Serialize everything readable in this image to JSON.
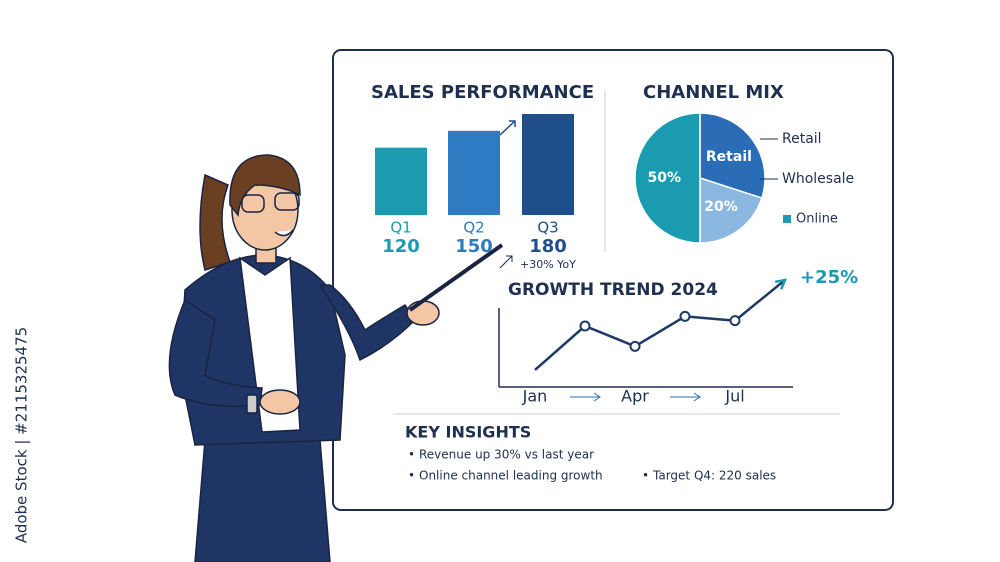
{
  "chart_data": [
    {
      "type": "bar",
      "title": "SALES PERFORMANCE",
      "categories": [
        "Q1",
        "Q2",
        "Q3"
      ],
      "values": [
        120,
        150,
        180
      ],
      "colors": [
        "#1a9bb0",
        "#2e7bc4",
        "#1f4e8c"
      ],
      "annotation": "+30% YoY"
    },
    {
      "type": "pie",
      "title": "CHANNEL MIX",
      "categories": [
        "Retail",
        "Wholesale",
        "Online"
      ],
      "values": [
        30,
        20,
        50
      ],
      "value_labels": [
        null,
        "20%",
        "50%"
      ],
      "colors": [
        "#2a6cb5",
        "#8bb8e0",
        "#1a9bb0"
      ]
    },
    {
      "type": "line",
      "title": "GROWTH TREND 2024",
      "categories": [
        "Jan",
        null,
        "Apr",
        null,
        "Jul",
        null
      ],
      "values": [
        16,
        57,
        38,
        66,
        62,
        100
      ],
      "ylim": [
        0,
        100
      ],
      "color": "#1f3a66",
      "annotation": "+25%"
    }
  ],
  "key_insights": {
    "title": "KEY INSIGHTS",
    "items": [
      "Revenue up 30% vs last year",
      "Online channel leading growth",
      "Target Q4: 220 sales"
    ]
  },
  "watermark": "Adobe Stock | #2115325475"
}
